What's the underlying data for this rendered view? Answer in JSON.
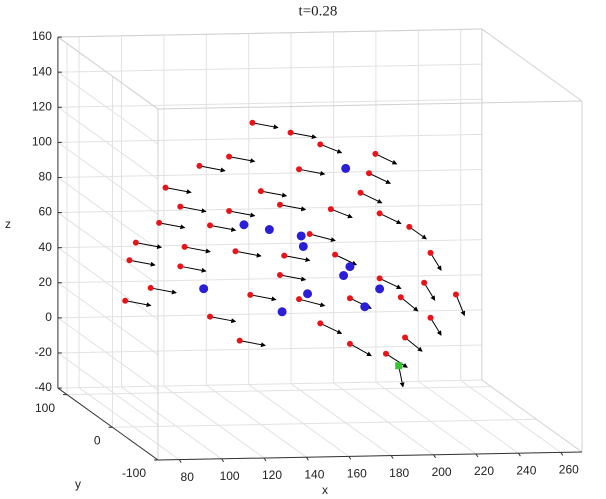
{
  "chart_data": {
    "type": "quiver3d",
    "title": "t=0.28",
    "x_label": "x",
    "y_label": "y",
    "z_label": "z",
    "xlim": [
      70,
      270
    ],
    "ylim": [
      -100,
      120
    ],
    "zlim": [
      -40,
      160
    ],
    "xticks": [
      80,
      100,
      120,
      140,
      160,
      180,
      200,
      220,
      240,
      260
    ],
    "yticks": [
      -100,
      0,
      100
    ],
    "zticks": [
      -40,
      -20,
      0,
      20,
      40,
      60,
      80,
      100,
      120,
      140,
      160
    ],
    "grid": true,
    "series": [
      {
        "color": "#e8141a",
        "marker": "circle",
        "x": [
          136,
          154,
          125,
          168,
          194,
          111,
          158,
          191,
          95,
          140,
          187,
          102,
          149,
          196,
          92,
          116,
          163,
          210,
          81,
          128,
          175,
          220,
          78,
          102,
          149,
          196,
          217,
          88,
          135,
          182,
          232,
          76,
          116,
          168,
          220,
          130,
          182,
          208,
          199,
          151,
          125,
          173,
          104,
          206,
          158
        ],
        "z": [
          132,
          126,
          113,
          119,
          113,
          108,
          105,
          102,
          96,
          93,
          91,
          85,
          85,
          79,
          76,
          74,
          68,
          71,
          65,
          59,
          56,
          56,
          55,
          51,
          45,
          42,
          39,
          39,
          34,
          31,
          32,
          32,
          22,
          17,
          19,
          8,
          5,
          8,
          -1,
          56,
          82,
          82,
          62,
          31,
          31
        ],
        "u": [
          12,
          12,
          12,
          10,
          10,
          12,
          12,
          10,
          12,
          12,
          10,
          12,
          12,
          10,
          12,
          12,
          12,
          8,
          12,
          12,
          10,
          5,
          12,
          12,
          12,
          10,
          5,
          12,
          12,
          10,
          4,
          12,
          12,
          10,
          5,
          12,
          10,
          8,
          10,
          12,
          12,
          10,
          12,
          8,
          12
        ],
        "w": [
          -3,
          -3,
          -3,
          -5,
          -6,
          -3,
          -3,
          -6,
          -3,
          -3,
          -6,
          -3,
          -3,
          -6,
          -3,
          -3,
          -4,
          -7,
          -3,
          -3,
          -6,
          -10,
          -3,
          -3,
          -3,
          -6,
          -10,
          -3,
          -3,
          -6,
          -12,
          -3,
          -3,
          -6,
          -10,
          -3,
          -7,
          -8,
          -8,
          -3,
          -3,
          -5,
          -3,
          -8,
          -4
        ]
      },
      {
        "color": "#2a1fd6",
        "marker": "circle",
        "x": [
          180,
          132,
          144,
          159,
          160,
          182,
          179,
          196,
          113,
          162,
          150,
          189
        ],
        "z": [
          105,
          74,
          71,
          67,
          61,
          49,
          44,
          36,
          38,
          34,
          24,
          26
        ]
      },
      {
        "color": "#33c633",
        "marker": "square",
        "x": [
          205
        ],
        "z": [
          -8
        ],
        "u": [
          2
        ],
        "w": [
          -12
        ]
      }
    ]
  }
}
